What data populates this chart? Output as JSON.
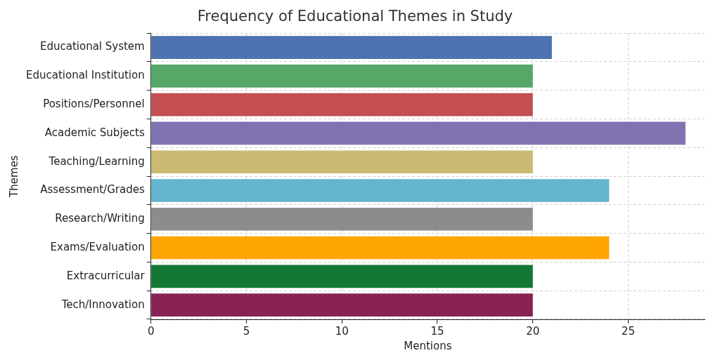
{
  "chart_data": {
    "type": "bar",
    "orientation": "horizontal",
    "title": "Frequency of Educational Themes in Study",
    "xlabel": "Mentions",
    "ylabel": "Themes",
    "categories": [
      "Educational System",
      "Educational Institution",
      "Positions/Personnel",
      "Academic Subjects",
      "Teaching/Learning",
      "Assessment/Grades",
      "Research/Writing",
      "Exams/Evaluation",
      "Extracurricular",
      "Tech/Innovation"
    ],
    "values": [
      21,
      20,
      20,
      28,
      20,
      24,
      20,
      24,
      20,
      20
    ],
    "colors": [
      "#4c72b0",
      "#55a868",
      "#c44e52",
      "#8172b2",
      "#ccb974",
      "#64b5cd",
      "#8c8c8c",
      "#ffa500",
      "#117733",
      "#882255"
    ],
    "xlim": [
      0,
      29
    ],
    "xticks": [
      0,
      5,
      10,
      15,
      20,
      25
    ],
    "grid": true,
    "legend": false
  }
}
